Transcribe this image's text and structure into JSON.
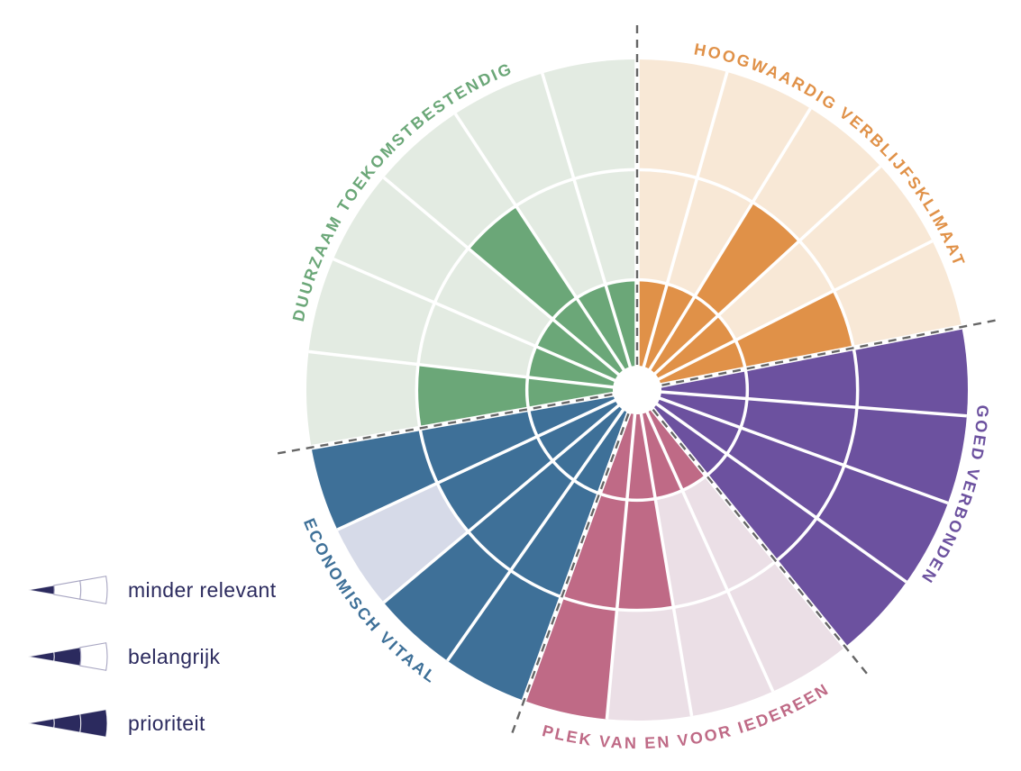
{
  "chart_data": {
    "type": "radial-priority-wheel",
    "rings": 3,
    "scale": [
      {
        "level": 1,
        "meaning": "minder relevant"
      },
      {
        "level": 2,
        "meaning": "belangrijk"
      },
      {
        "level": 3,
        "meaning": "prioriteit"
      }
    ],
    "sectors": [
      {
        "id": "duurzaam-toekomstbestendig",
        "label": "DUURZAAM TOEKOMSTBESTENDIG",
        "color": "#6BA778",
        "color_light": "#E3EBE2",
        "start_angle": 90,
        "end_angle": 190,
        "label_side": "top",
        "label_start_angle": 168.5,
        "wedge_levels": [
          1,
          1,
          2,
          1,
          1,
          2
        ]
      },
      {
        "id": "economisch-vitaal",
        "label": "ECONOMISCH VITAAL",
        "color": "#3E7098",
        "color_light": "#D6DAE8",
        "start_angle": 190,
        "end_angle": 250,
        "label_side": "bottom",
        "label_start_angle": 201.5,
        "wedge_levels": [
          3,
          2,
          3,
          3
        ]
      },
      {
        "id": "plek-van-en-voor-iedereen",
        "label": "PLEK VAN EN VOOR IEDEREEN",
        "color": "#BF6A86",
        "color_light": "#EBDFE6",
        "start_angle": 250,
        "end_angle": 309,
        "label_side": "bottom",
        "label_start_angle": 254.5,
        "wedge_levels": [
          3,
          2,
          1,
          1
        ]
      },
      {
        "id": "goed-verbonden",
        "label": "GOED VERBONDEN",
        "color": "#6C519F",
        "color_light": "#E7E1F0",
        "start_angle": 309,
        "end_angle": 371,
        "label_side": "top",
        "label_start_angle": 357.5,
        "wedge_levels": [
          3,
          3,
          3,
          3
        ]
      },
      {
        "id": "hoogwaardig-verblijfsklimaat",
        "label": "HOOGWAARDIG VERBLIJFSKLIMAAT",
        "color": "#E09148",
        "color_light": "#F8E8D6",
        "start_angle": 371,
        "end_angle": 450,
        "label_side": "top",
        "label_start_angle": 80.5,
        "wedge_levels": [
          2,
          1,
          2,
          1,
          1
        ]
      }
    ],
    "legend": {
      "position": "bottom-left",
      "text_color": "#2B2A5E",
      "items": [
        {
          "label": "minder relevant",
          "filled_segments": 1
        },
        {
          "label": "belangrijk",
          "filled_segments": 2
        },
        {
          "label": "prioriteit",
          "filled_segments": 3
        }
      ]
    },
    "grid": {
      "ring_divider_color": "#FFFFFF",
      "boundary_dash_color": "#666666",
      "boundary_style": "dashed"
    }
  }
}
